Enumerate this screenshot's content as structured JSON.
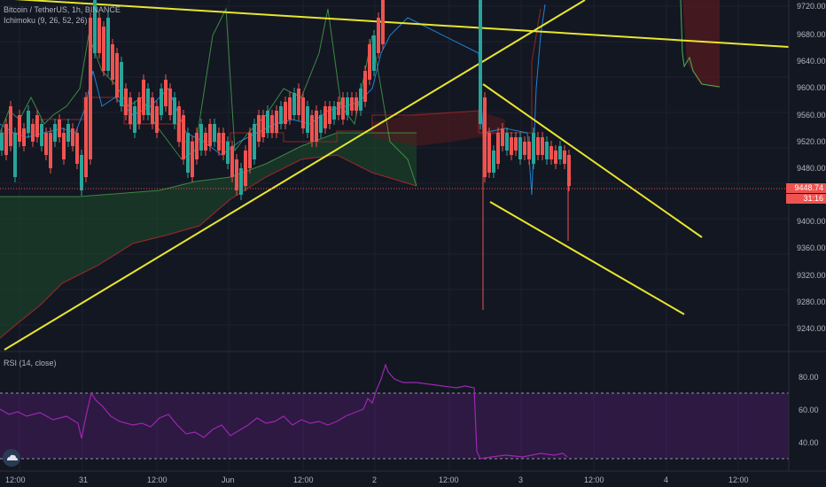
{
  "chart": {
    "title": "Bitcoin / TetherUS, 1h, BINANCE",
    "indicator": "Ichimoku (9, 26, 52, 26)",
    "current_price": "9448.74",
    "countdown": "31:16",
    "price_ticks": [
      "9720.00",
      "9680.00",
      "9640.00",
      "9600.00",
      "9560.00",
      "9520.00",
      "9480.00",
      "9440.00",
      "9400.00",
      "9360.00",
      "9320.00",
      "9280.00",
      "9240.00"
    ],
    "time_ticks": [
      "12:00",
      "31",
      "12:00",
      "Jun",
      "12:00",
      "2",
      "12:00",
      "3",
      "12:00",
      "4",
      "12:00"
    ],
    "colors": {
      "background": "#131722",
      "up": "#26a69a",
      "down": "#ef5350",
      "trendline": "#e8e62e",
      "rsi": "#9c27b0"
    }
  },
  "rsi": {
    "title": "RSI (14, close)",
    "ticks": [
      "80.00",
      "60.00",
      "40.00"
    ]
  }
}
